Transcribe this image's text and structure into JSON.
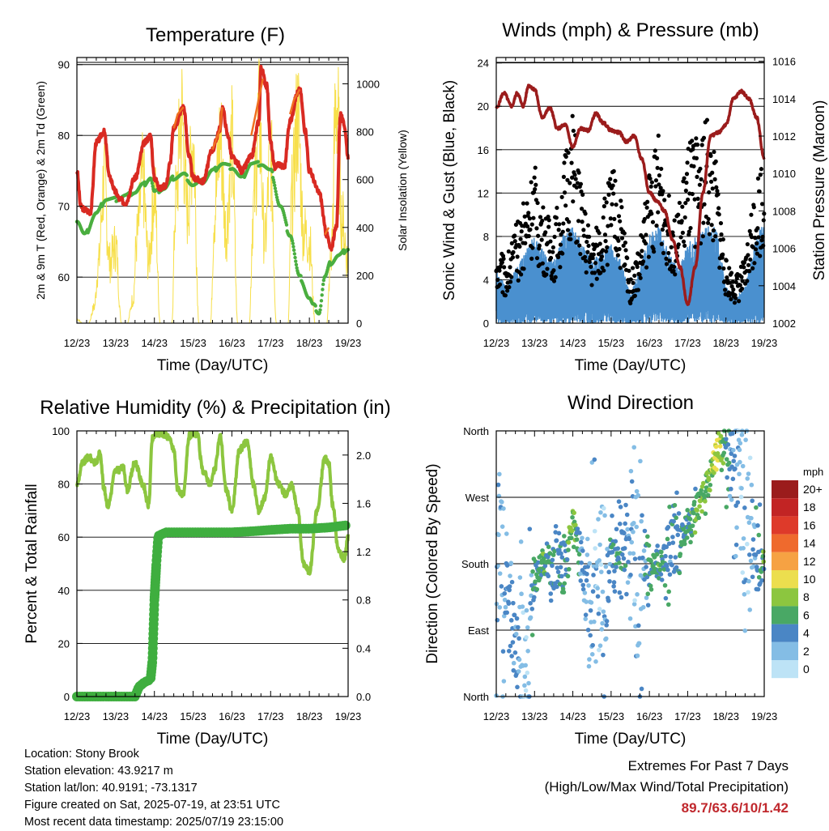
{
  "x_ticks": [
    "12/23",
    "13/23",
    "14/23",
    "15/23",
    "16/23",
    "17/23",
    "18/23",
    "19/23"
  ],
  "x_label": "Time (Day/UTC)",
  "colors": {
    "temp2m": "#d92a22",
    "temp9m": "#f07020",
    "dew": "#4aae3f",
    "solar": "#f7df4a",
    "wind": "#4a90cf",
    "gust": "#000000",
    "pressure": "#9b1c1c",
    "rh": "#8cc63f",
    "rain": "#3fae3f",
    "grid": "#000000"
  },
  "speed_scale": {
    "title": "mph",
    "labels": [
      "20+",
      "18",
      "16",
      "14",
      "12",
      "10",
      "8",
      "6",
      "4",
      "2",
      "0"
    ],
    "colors": [
      "#9b1c1c",
      "#c22424",
      "#de3a2a",
      "#ef6a2d",
      "#f6a243",
      "#ecde4e",
      "#8cc63f",
      "#49a865",
      "#4a86c5",
      "#84bde5",
      "#bde3f6"
    ]
  },
  "info": {
    "location": "Location: Stony Brook",
    "elevation": "Station elevation: 43.9217 m",
    "latlon": "Station lat/lon: 40.9191; -73.1317",
    "created": "Figure created on Sat, 2025-07-19, at 23:51 UTC",
    "recent": "Most recent data timestamp: 2025/07/19 23:15:00"
  },
  "extremes": {
    "title": "Extremes For Past 7 Days",
    "subtitle": "(High/Low/Max Wind/Total Precipitation)",
    "values": "89.7/63.6/10/1.42"
  },
  "chart_data": [
    {
      "id": "temperature",
      "type": "line",
      "title": "Temperature (F)",
      "xlabel": "Time (Day/UTC)",
      "ylabel": "2m & 9m T (Red, Orange) & 2m Td (Green)",
      "y2label": "Solar Insolation (Yellow)",
      "xlim": [
        12,
        19
      ],
      "ylim": [
        53.5,
        91
      ],
      "y2lim": [
        0,
        1110
      ],
      "yticks": [
        60,
        70,
        80,
        90
      ],
      "y2ticks": [
        0,
        200,
        400,
        600,
        800,
        1000
      ],
      "series": [
        {
          "name": "2m T",
          "axis": "left",
          "x": [
            12,
            12.1,
            12.2,
            12.35,
            12.5,
            12.7,
            12.85,
            13,
            13.1,
            13.25,
            13.5,
            13.75,
            13.9,
            14,
            14.15,
            14.3,
            14.4,
            14.5,
            14.75,
            14.9,
            15,
            15.25,
            15.5,
            15.7,
            15.75,
            15.9,
            16,
            16.15,
            16.25,
            16.5,
            16.7,
            16.75,
            16.9,
            17,
            17.1,
            17.2,
            17.35,
            17.5,
            17.7,
            17.75,
            17.9,
            18,
            18.25,
            18.45,
            18.55,
            18.7,
            18.8,
            18.9,
            19
          ],
          "y": [
            75,
            70,
            69.5,
            69.2,
            79,
            80.5,
            74,
            72,
            71,
            70.5,
            74,
            79,
            80,
            74,
            72.5,
            73,
            76,
            81,
            84,
            77,
            74,
            73.5,
            78,
            81,
            84,
            80,
            77,
            76,
            75,
            77,
            82,
            89.5,
            87,
            79,
            75.5,
            76,
            75.5,
            82,
            86,
            86.5,
            80.5,
            75,
            72,
            66,
            64,
            67,
            83,
            81.5,
            77
          ]
        },
        {
          "name": "9m T",
          "axis": "left",
          "x": [
            14.5,
            14.6,
            14.75,
            15.5,
            15.7,
            15.75,
            16.5,
            16.65,
            16.8,
            17.5,
            17.6,
            17.75,
            18.4,
            18.5
          ],
          "y": [
            81,
            83,
            84,
            78,
            81,
            84,
            80,
            84,
            88,
            83,
            85,
            86.5,
            66,
            67
          ]
        },
        {
          "name": "2m Td",
          "axis": "left",
          "x": [
            12,
            12.2,
            12.5,
            12.75,
            13,
            13.25,
            13.5,
            13.7,
            13.9,
            14,
            14.25,
            14.5,
            14.75,
            15,
            15.25,
            15.5,
            15.75,
            16,
            16.25,
            16.5,
            16.75,
            17,
            17.25,
            17.5,
            17.75,
            18,
            18.1,
            18.25,
            18.4,
            18.55,
            18.75,
            19
          ],
          "y": [
            68,
            66,
            69,
            71,
            71,
            71.5,
            72,
            73,
            74,
            72,
            72.5,
            74,
            74.5,
            73,
            73.5,
            75,
            76,
            75.5,
            74,
            76,
            76,
            75,
            70,
            66,
            60,
            57,
            56,
            55,
            60,
            62,
            63,
            64
          ]
        },
        {
          "name": "Solar Insolation",
          "axis": "right",
          "x": [
            12,
            12.15,
            12.3,
            12.45,
            12.55,
            12.7,
            12.85,
            13,
            13.15,
            13.3,
            13.45,
            13.55,
            13.7,
            13.85,
            14,
            14.15,
            14.3,
            14.45,
            14.55,
            14.7,
            14.85,
            15,
            15.15,
            15.3,
            15.45,
            15.55,
            15.7,
            15.85,
            16,
            16.15,
            16.3,
            16.45,
            16.55,
            16.7,
            16.85,
            17,
            17.15,
            17.3,
            17.45,
            17.55,
            17.7,
            17.85,
            18,
            18.15,
            18.3,
            18.45,
            18.55,
            18.7,
            18.85,
            19
          ],
          "y": [
            20,
            0,
            0,
            80,
            280,
            700,
            300,
            380,
            0,
            0,
            120,
            420,
            700,
            300,
            650,
            0,
            0,
            0,
            600,
            1020,
            550,
            900,
            0,
            0,
            0,
            550,
            900,
            450,
            880,
            0,
            0,
            0,
            560,
            1000,
            400,
            820,
            0,
            0,
            0,
            620,
            1010,
            450,
            400,
            0,
            0,
            0,
            300,
            1090,
            500,
            300
          ]
        }
      ]
    },
    {
      "id": "winds",
      "type": "line",
      "title": "Winds (mph) & Pressure (mb)",
      "xlabel": "Time (Day/UTC)",
      "ylabel": "Sonic Wind & Gust (Blue, Black)",
      "y2label": "Station Pressure (Maroon)",
      "xlim": [
        12,
        19
      ],
      "ylim": [
        0,
        24.5
      ],
      "y2lim": [
        1002,
        1016.2
      ],
      "yticks": [
        0,
        4,
        8,
        12,
        16,
        20,
        24
      ],
      "y2ticks": [
        1002,
        1004,
        1006,
        1008,
        1010,
        1012,
        1014,
        1016
      ],
      "series": [
        {
          "name": "Wind",
          "axis": "left",
          "x": [
            12,
            12.25,
            12.5,
            12.75,
            13,
            13.25,
            13.5,
            13.75,
            14,
            14.25,
            14.5,
            14.75,
            15,
            15.25,
            15.5,
            15.75,
            16,
            16.25,
            16.5,
            16.75,
            17,
            17.25,
            17.5,
            17.75,
            18,
            18.25,
            18.5,
            18.75,
            19
          ],
          "y": [
            2.5,
            1.5,
            2.5,
            3.5,
            4.5,
            3.5,
            3,
            4.5,
            5,
            4,
            3,
            3.5,
            4,
            3,
            1,
            2.5,
            4.5,
            5,
            3.5,
            2.5,
            4,
            4.5,
            5,
            5,
            1.5,
            1,
            1.5,
            4,
            5.5
          ]
        },
        {
          "name": "Gust",
          "axis": "left",
          "x": [
            12,
            12.25,
            12.5,
            12.75,
            13,
            13.25,
            13.5,
            13.75,
            14,
            14.25,
            14.5,
            14.75,
            15,
            15.25,
            15.5,
            15.75,
            16,
            16.25,
            16.5,
            16.75,
            17,
            17.25,
            17.5,
            17.75,
            18,
            18.25,
            18.5,
            18.75,
            19
          ],
          "y": [
            5,
            4,
            6,
            8,
            10,
            7,
            6,
            10,
            13,
            8,
            5,
            7,
            10,
            8,
            3,
            5,
            10,
            12,
            8,
            7,
            11,
            12,
            13,
            10,
            4,
            3,
            4,
            9,
            11
          ]
        },
        {
          "name": "Station Pressure",
          "axis": "right",
          "x": [
            12,
            12.2,
            12.4,
            12.55,
            12.7,
            12.85,
            13,
            13.2,
            13.4,
            13.6,
            13.8,
            14,
            14.2,
            14.4,
            14.6,
            14.8,
            15,
            15.2,
            15.4,
            15.6,
            15.8,
            16,
            16.2,
            16.4,
            16.6,
            16.8,
            17,
            17.2,
            17.4,
            17.6,
            17.8,
            18,
            18.2,
            18.4,
            18.6,
            18.8,
            19
          ],
          "y": [
            1013.5,
            1014.3,
            1013.6,
            1014.3,
            1013.6,
            1014.7,
            1014.5,
            1013,
            1013.5,
            1012.4,
            1012.6,
            1011.4,
            1012.4,
            1012.3,
            1013.2,
            1012.7,
            1012.3,
            1012.2,
            1011.7,
            1012,
            1010.8,
            1009,
            1008.5,
            1008,
            1006.5,
            1005,
            1003,
            1005,
            1009,
            1012,
            1012.2,
            1012.6,
            1014,
            1014.4,
            1014,
            1013,
            1010.8
          ]
        }
      ]
    },
    {
      "id": "rh-precip",
      "type": "line",
      "title": "Relative Humidity (%) & Precipitation (in)",
      "xlabel": "Time (Day/UTC)",
      "ylabel": "Percent & Total Rainfall",
      "xlim": [
        12,
        19
      ],
      "ylim": [
        0,
        100
      ],
      "y2lim": [
        0,
        2.2
      ],
      "yticks": [
        0,
        20,
        40,
        60,
        80,
        100
      ],
      "y2ticks": [
        0.0,
        0.4,
        0.8,
        1.2,
        1.6,
        2.0
      ],
      "series": [
        {
          "name": "Relative Humidity",
          "axis": "left",
          "x": [
            12,
            12.15,
            12.3,
            12.5,
            12.6,
            12.7,
            12.8,
            13,
            13.2,
            13.3,
            13.5,
            13.7,
            13.85,
            13.95,
            14.05,
            14.2,
            14.35,
            14.5,
            14.6,
            14.75,
            14.9,
            15,
            15.1,
            15.25,
            15.45,
            15.55,
            15.7,
            15.85,
            16,
            16.2,
            16.4,
            16.55,
            16.7,
            16.85,
            17,
            17.2,
            17.4,
            17.55,
            17.7,
            17.85,
            18,
            18.2,
            18.4,
            18.5,
            18.6,
            18.75,
            18.9,
            19
          ],
          "y": [
            80,
            88,
            90,
            88,
            92,
            78,
            72,
            85,
            86,
            78,
            88,
            80,
            72,
            97,
            99,
            99,
            98,
            93,
            78,
            76,
            98,
            99,
            99,
            85,
            80,
            85,
            98,
            78,
            70,
            93,
            96,
            80,
            70,
            75,
            90,
            80,
            76,
            80,
            70,
            50,
            47,
            70,
            90,
            88,
            72,
            55,
            52,
            60
          ]
        },
        {
          "name": "Total Rainfall",
          "axis": "right",
          "x": [
            12,
            12.5,
            13,
            13.5,
            13.6,
            13.75,
            13.9,
            13.95,
            14,
            14.05,
            14.1,
            14.3,
            14.6,
            15,
            16,
            16.6,
            17,
            17.5,
            18,
            18.5,
            19
          ],
          "y": [
            0,
            0,
            0,
            0,
            0.08,
            0.12,
            0.14,
            0.3,
            0.8,
            1.1,
            1.33,
            1.36,
            1.36,
            1.36,
            1.36,
            1.37,
            1.38,
            1.39,
            1.39,
            1.4,
            1.42
          ]
        }
      ]
    },
    {
      "id": "wind-direction",
      "type": "scatter",
      "title": "Wind Direction",
      "xlabel": "Time (Day/UTC)",
      "ylabel": "Direction (Colored By Speed)",
      "xlim": [
        12,
        19
      ],
      "yticks": [
        "North",
        "East",
        "South",
        "West",
        "North"
      ],
      "ylim_degrees": [
        0,
        360
      ],
      "color_scale": "speed_scale",
      "series": [
        {
          "name": "Wind Direction",
          "x": [
            12,
            12.2,
            12.4,
            12.6,
            12.8,
            13,
            13.2,
            13.4,
            13.6,
            13.8,
            14,
            14.2,
            14.4,
            14.6,
            14.8,
            15,
            15.2,
            15.4,
            15.6,
            15.8,
            16,
            16.2,
            16.4,
            16.6,
            16.8,
            17,
            17.2,
            17.4,
            17.6,
            17.8,
            18,
            18.2,
            18.4,
            18.6,
            18.8,
            19
          ],
          "y": [
            180,
            170,
            100,
            40,
            15,
            170,
            175,
            180,
            190,
            170,
            240,
            200,
            140,
            120,
            160,
            180,
            190,
            200,
            160,
            170,
            175,
            180,
            185,
            200,
            210,
            230,
            250,
            270,
            300,
            340,
            330,
            300,
            260,
            230,
            180,
            190
          ],
          "speed": [
            2,
            3,
            4,
            3,
            1,
            5,
            6,
            5,
            4,
            5,
            8,
            4,
            3,
            2,
            2,
            4,
            5,
            4,
            2,
            3,
            5,
            6,
            5,
            4,
            5,
            6,
            6,
            7,
            8,
            10,
            5,
            3,
            2,
            2,
            4,
            6
          ]
        }
      ]
    }
  ]
}
